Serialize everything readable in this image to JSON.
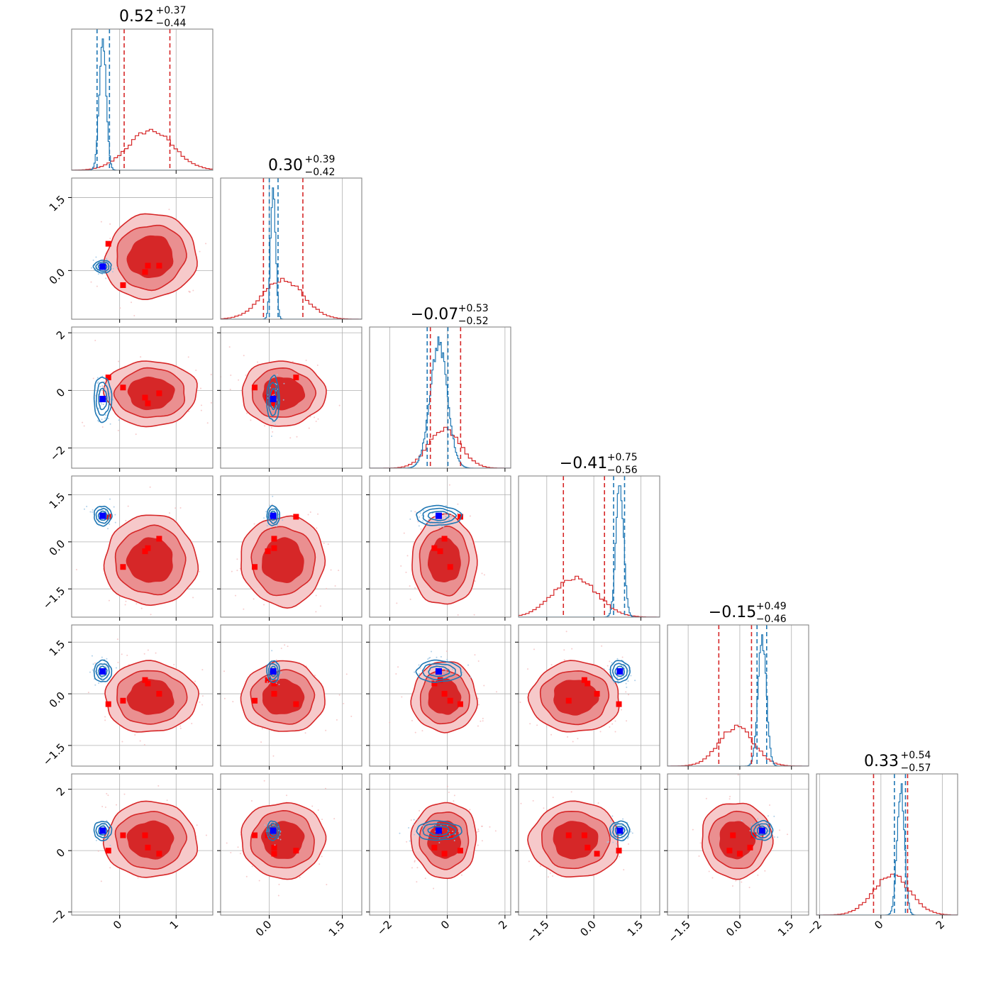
{
  "chart_data": {
    "type": "corner",
    "n_params": 6,
    "grid": true,
    "colors": {
      "red": "#d62728",
      "red_mid": "#ea8f90",
      "red_light": "#f6c9ca",
      "blue": "#1f77b4",
      "marker_blue": "#0000ff",
      "marker_red": "#ff0000",
      "grid": "#b0b0b0"
    },
    "titles": [
      {
        "median": "0.52",
        "plus": "+0.37",
        "minus": "−0.44"
      },
      {
        "median": "0.30",
        "plus": "+0.39",
        "minus": "−0.42"
      },
      {
        "median": "−0.07",
        "plus": "+0.53",
        "minus": "−0.52"
      },
      {
        "median": "−0.41",
        "plus": "+0.75",
        "minus": "−0.56"
      },
      {
        "median": "−0.15",
        "plus": "+0.49",
        "minus": "−0.46"
      },
      {
        "median": "0.33",
        "plus": "+0.54",
        "minus": "−0.57"
      }
    ],
    "ranges": [
      [
        -0.85,
        1.65
      ],
      [
        -1.0,
        1.9
      ],
      [
        -2.7,
        2.2
      ],
      [
        -2.4,
        2.1
      ],
      [
        -2.1,
        2.0
      ],
      [
        -2.1,
        2.5
      ]
    ],
    "x_ticks": [
      {
        "values": [
          0,
          1
        ],
        "labels": [
          "0",
          "1"
        ]
      },
      {
        "values": [
          0.0,
          1.5
        ],
        "labels": [
          "0.0",
          "1.5"
        ]
      },
      {
        "values": [
          -2,
          0,
          2
        ],
        "labels": [
          "−2",
          "0",
          "2"
        ]
      },
      {
        "values": [
          -1.5,
          0.0,
          1.5
        ],
        "labels": [
          "−1.5",
          "0.0",
          "1.5"
        ]
      },
      {
        "values": [
          -1.5,
          0.0,
          1.5
        ],
        "labels": [
          "−1.5",
          "0.0",
          "1.5"
        ]
      },
      {
        "values": [
          -2,
          0,
          2
        ],
        "labels": [
          "−2",
          "0",
          "2"
        ]
      }
    ],
    "y_ticks": [
      null,
      {
        "values": [
          0.0,
          1.5
        ],
        "labels": [
          "0.0",
          "1.5"
        ]
      },
      {
        "values": [
          -2,
          0,
          2
        ],
        "labels": [
          "−2",
          "0",
          "2"
        ]
      },
      {
        "values": [
          -1.5,
          0.0,
          1.5
        ],
        "labels": [
          "−1.5",
          "0.0",
          "1.5"
        ]
      },
      {
        "values": [
          -1.5,
          0.0,
          1.5
        ],
        "labels": [
          "−1.5",
          "0.0",
          "1.5"
        ]
      },
      {
        "values": [
          -2,
          0,
          2
        ],
        "labels": [
          "−2",
          "0",
          "2"
        ]
      }
    ],
    "red_posterior": {
      "mean": [
        0.55,
        0.28,
        -0.1,
        -0.6,
        -0.1,
        0.35
      ],
      "sd": [
        0.4,
        0.42,
        0.55,
        0.7,
        0.5,
        0.6
      ],
      "quantiles": [
        [
          0.08,
          0.89
        ],
        [
          -0.12,
          0.69
        ],
        [
          -0.59,
          0.46
        ],
        [
          -0.97,
          0.34
        ],
        [
          -0.61,
          0.34
        ],
        [
          -0.24,
          0.87
        ]
      ]
    },
    "blue_posterior": {
      "mean": [
        -0.3,
        0.08,
        -0.3,
        0.83,
        0.65,
        0.65
      ],
      "sd": [
        0.06,
        0.05,
        0.3,
        0.12,
        0.12,
        0.12
      ],
      "quantiles": [
        [
          -0.4,
          -0.18
        ],
        [
          0.0,
          0.18
        ],
        [
          -0.7,
          0.02
        ],
        [
          0.63,
          0.98
        ],
        [
          0.5,
          0.78
        ],
        [
          0.44,
          0.8
        ]
      ]
    },
    "truth_blue": [
      -0.3,
      0.08,
      -0.3,
      0.83,
      0.65,
      0.65
    ],
    "truth_red": [
      [
        0.06,
        0.5,
        0.7,
        0.45,
        -0.2
      ],
      [
        -0.3,
        0.1,
        0.1,
        -0.03,
        0.55
      ],
      [
        0.1,
        -0.45,
        -0.1,
        -0.25,
        0.45
      ],
      [
        -0.8,
        -0.2,
        0.1,
        -0.3,
        0.8
      ],
      [
        -0.2,
        0.3,
        0.0,
        0.4,
        -0.3
      ],
      [
        0.5,
        0.1,
        -0.1,
        0.5,
        0.0
      ]
    ]
  }
}
